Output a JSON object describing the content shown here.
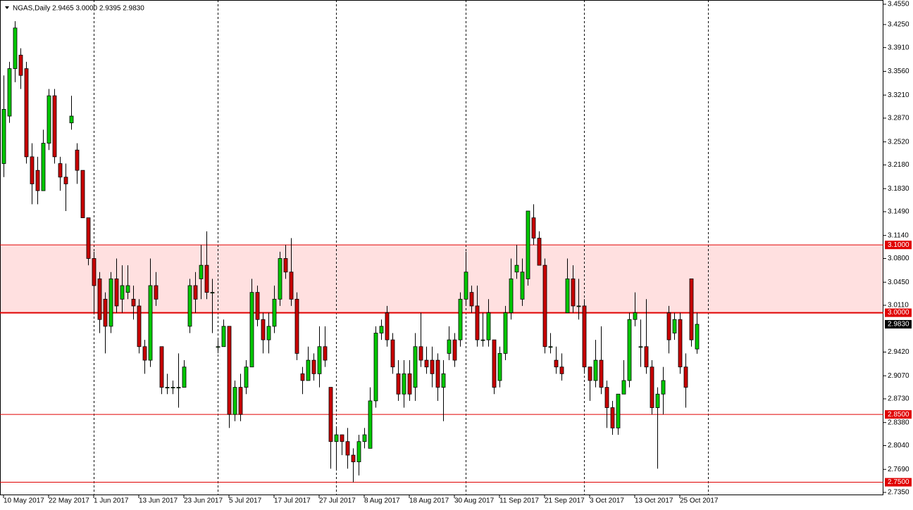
{
  "chart_data": {
    "type": "candlestick",
    "title": "NGAS,Daily  2.9465 3.0000 2.9395 2.9830",
    "categories": [
      "10 May 2017",
      null,
      null,
      null,
      null,
      null,
      null,
      null,
      "22 May 2017",
      null,
      null,
      null,
      null,
      null,
      null,
      null,
      "1 Jun 2017",
      null,
      null,
      null,
      null,
      null,
      null,
      null,
      "13 Jun 2017",
      null,
      null,
      null,
      null,
      null,
      null,
      null,
      "23 Jun 2017",
      null,
      null,
      null,
      null,
      null,
      null,
      null,
      "5 Jul 2017",
      null,
      null,
      null,
      null,
      null,
      null,
      null,
      "17 Jul 2017",
      null,
      null,
      null,
      null,
      null,
      null,
      null,
      "27 Jul 2017",
      null,
      null,
      null,
      null,
      null,
      null,
      null,
      "8 Aug 2017",
      null,
      null,
      null,
      null,
      null,
      null,
      null,
      "18 Aug 2017",
      null,
      null,
      null,
      null,
      null,
      null,
      null,
      "30 Aug 2017",
      null,
      null,
      null,
      null,
      null,
      null,
      null,
      "11 Sep 2017",
      null,
      null,
      null,
      null,
      null,
      null,
      null,
      "21 Sep 2017",
      null,
      null,
      null,
      null,
      null,
      null,
      null,
      "3 Oct 2017",
      null,
      null,
      null,
      null,
      null,
      null,
      null,
      "13 Oct 2017",
      null,
      null,
      null,
      null,
      null,
      null,
      null,
      "25 Oct 2017",
      null,
      null,
      null
    ],
    "open": [
      3.22,
      3.29,
      3.36,
      3.38,
      3.36,
      3.23,
      3.21,
      3.18,
      3.25,
      3.32,
      3.22,
      3.2,
      3.28,
      3.24,
      3.21,
      3.14,
      3.08,
      3.05,
      3.02,
      2.98,
      3.05,
      3.02,
      3.03,
      3.02,
      3.01,
      2.95,
      2.93,
      3.04,
      2.95,
      2.89,
      2.89,
      2.89,
      2.89,
      2.98,
      3.04,
      3.05,
      3.07,
      3.03,
      2.95,
      2.95,
      2.98,
      2.85,
      2.89,
      2.89,
      2.92,
      3.03,
      2.99,
      2.96,
      2.98,
      3.02,
      3.08,
      3.06,
      3.02,
      2.91,
      2.9,
      2.93,
      2.91,
      2.95,
      2.89,
      2.81,
      2.82,
      2.81,
      2.79,
      2.78,
      2.81,
      2.8,
      2.87,
      2.97,
      3.0,
      2.96,
      2.91,
      2.88,
      2.91,
      2.89,
      2.95,
      2.93,
      2.93,
      2.93,
      2.89,
      2.94,
      2.96,
      2.96,
      3.02,
      3.03,
      3.01,
      2.96,
      2.96,
      2.96,
      2.9,
      2.94,
      3.0,
      3.06,
      3.02,
      3.05,
      3.14,
      3.11,
      3.07,
      2.95,
      2.93,
      2.92,
      3.0,
      3.05,
      3.01,
      3.01,
      2.92,
      2.9,
      2.93,
      2.89,
      2.86,
      2.83,
      2.88,
      2.9,
      2.99,
      2.95,
      2.95,
      2.92,
      2.86,
      2.88,
      3.0,
      2.97,
      2.99,
      2.92,
      3.05,
      2.9465
    ],
    "high": [
      3.35,
      3.37,
      3.43,
      3.39,
      3.37,
      3.25,
      3.23,
      3.27,
      3.33,
      3.33,
      3.23,
      3.22,
      3.32,
      3.25,
      3.21,
      3.14,
      3.09,
      3.06,
      3.03,
      3.06,
      3.08,
      3.07,
      3.07,
      3.04,
      3.02,
      2.96,
      3.08,
      3.06,
      2.95,
      2.91,
      2.9,
      2.94,
      2.93,
      3.05,
      3.06,
      3.1,
      3.12,
      3.05,
      2.96,
      2.99,
      2.98,
      2.9,
      2.91,
      2.93,
      3.05,
      3.04,
      3.0,
      3.0,
      3.04,
      3.09,
      3.1,
      3.11,
      3.03,
      2.92,
      2.95,
      2.94,
      2.98,
      2.98,
      2.89,
      2.83,
      2.82,
      2.83,
      2.8,
      2.82,
      2.83,
      2.89,
      2.98,
      2.99,
      3.01,
      2.97,
      2.93,
      2.93,
      2.93,
      2.97,
      3.0,
      2.95,
      2.95,
      2.94,
      2.93,
      2.98,
      2.97,
      3.03,
      3.09,
      3.04,
      3.04,
      3.0,
      3.02,
      2.96,
      2.95,
      3.01,
      3.08,
      3.1,
      3.08,
      3.15,
      3.16,
      3.12,
      3.08,
      2.97,
      2.95,
      2.94,
      3.08,
      3.07,
      3.05,
      3.02,
      2.92,
      2.96,
      2.98,
      2.9,
      2.87,
      2.88,
      2.93,
      3.0,
      3.03,
      2.99,
      3.02,
      2.93,
      2.89,
      2.92,
      3.01,
      3.0,
      3.0,
      2.94,
      3.05,
      3.0
    ],
    "low": [
      3.2,
      3.28,
      3.34,
      3.33,
      3.22,
      3.16,
      3.16,
      3.18,
      3.24,
      3.22,
      3.18,
      3.15,
      3.27,
      3.19,
      3.14,
      3.07,
      3.0,
      2.97,
      2.94,
      2.97,
      3.0,
      3.0,
      3.02,
      2.99,
      2.94,
      2.91,
      2.92,
      3.01,
      2.88,
      2.88,
      2.88,
      2.86,
      2.89,
      2.97,
      3.0,
      3.02,
      3.02,
      2.97,
      2.94,
      2.95,
      2.83,
      2.84,
      2.84,
      2.88,
      2.92,
      2.98,
      2.94,
      2.94,
      2.97,
      3.01,
      3.05,
      3.01,
      2.93,
      2.88,
      2.9,
      2.9,
      2.89,
      2.92,
      2.77,
      2.77,
      2.79,
      2.77,
      2.75,
      2.76,
      2.8,
      2.8,
      2.86,
      2.96,
      2.95,
      2.91,
      2.87,
      2.86,
      2.87,
      2.87,
      2.92,
      2.91,
      2.89,
      2.87,
      2.84,
      2.93,
      2.92,
      2.95,
      3.01,
      3.0,
      2.95,
      2.95,
      2.95,
      2.88,
      2.89,
      2.93,
      2.99,
      3.05,
      3.01,
      3.04,
      3.1,
      3.07,
      2.94,
      2.94,
      2.91,
      2.9,
      3.0,
      3.0,
      2.99,
      2.91,
      2.87,
      2.89,
      2.88,
      2.83,
      2.82,
      2.82,
      2.88,
      2.89,
      2.98,
      2.92,
      2.91,
      2.85,
      2.77,
      2.85,
      2.94,
      2.96,
      2.91,
      2.86,
      2.95,
      2.9395
    ],
    "close": [
      3.3,
      3.36,
      3.42,
      3.35,
      3.23,
      3.19,
      3.18,
      3.25,
      3.32,
      3.23,
      3.2,
      3.19,
      3.29,
      3.21,
      3.14,
      3.08,
      3.04,
      2.99,
      2.98,
      3.05,
      3.01,
      3.04,
      3.04,
      3.01,
      2.95,
      2.93,
      3.04,
      3.02,
      2.89,
      2.89,
      2.89,
      2.89,
      2.92,
      3.04,
      3.02,
      3.07,
      3.03,
      3.03,
      2.95,
      2.98,
      2.85,
      2.89,
      2.85,
      2.92,
      3.03,
      2.99,
      2.96,
      2.98,
      3.02,
      3.08,
      3.06,
      3.02,
      2.94,
      2.9,
      2.93,
      2.91,
      2.95,
      2.93,
      2.81,
      2.82,
      2.81,
      2.79,
      2.78,
      2.81,
      2.82,
      2.87,
      2.97,
      2.98,
      2.96,
      2.92,
      2.88,
      2.91,
      2.88,
      2.95,
      2.93,
      2.92,
      2.91,
      2.89,
      2.91,
      2.96,
      2.93,
      3.02,
      3.06,
      3.01,
      2.96,
      2.96,
      3.0,
      2.89,
      2.94,
      3.0,
      3.05,
      3.07,
      3.06,
      3.15,
      3.11,
      3.07,
      2.95,
      2.95,
      2.92,
      2.91,
      3.05,
      3.01,
      3.01,
      2.92,
      2.9,
      2.93,
      2.89,
      2.86,
      2.83,
      2.88,
      2.9,
      2.99,
      3.0,
      2.95,
      2.92,
      2.86,
      2.88,
      2.9,
      2.96,
      2.99,
      2.92,
      2.89,
      2.96,
      2.983
    ],
    "up_color": "#00c800",
    "down_color": "#c80000",
    "ylim": [
      2.735,
      3.455
    ],
    "yticks": [
      {
        "value": 3.455,
        "label": "3.4550"
      },
      {
        "value": 3.425,
        "label": "3.4250"
      },
      {
        "value": 3.391,
        "label": "3.3910"
      },
      {
        "value": 3.356,
        "label": "3.3560"
      },
      {
        "value": 3.321,
        "label": "3.3210"
      },
      {
        "value": 3.287,
        "label": "3.2870"
      },
      {
        "value": 3.252,
        "label": "3.2520"
      },
      {
        "value": 3.218,
        "label": "3.2180"
      },
      {
        "value": 3.183,
        "label": "3.1830"
      },
      {
        "value": 3.149,
        "label": "3.1490"
      },
      {
        "value": 3.114,
        "label": "3.1140"
      },
      {
        "value": 3.08,
        "label": "3.0800"
      },
      {
        "value": 3.045,
        "label": "3.0450"
      },
      {
        "value": 3.011,
        "label": "3.0110"
      },
      {
        "value": 2.942,
        "label": "2.9420"
      },
      {
        "value": 2.907,
        "label": "2.9070"
      },
      {
        "value": 2.873,
        "label": "2.8730"
      },
      {
        "value": 2.838,
        "label": "2.8380"
      },
      {
        "value": 2.804,
        "label": "2.8040"
      },
      {
        "value": 2.769,
        "label": "2.7690"
      },
      {
        "value": 2.735,
        "label": "2.7350"
      }
    ],
    "levels": [
      {
        "value": 3.1,
        "label": "3.1000"
      },
      {
        "value": 3.0,
        "label": "3.0000"
      },
      {
        "value": 2.85,
        "label": "2.8500"
      },
      {
        "value": 2.75,
        "label": "2.7500"
      }
    ],
    "last_price": {
      "value": 2.983,
      "label": "2.9830"
    }
  }
}
